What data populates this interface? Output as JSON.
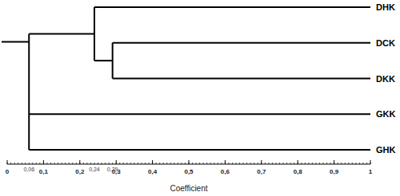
{
  "chart_data": {
    "type": "dendrogram",
    "x_label": "Coefficient",
    "xlim": [
      0,
      1
    ],
    "xticks": [
      0,
      {
        "value": 0.1,
        "label": "0,1"
      },
      {
        "value": 0.2,
        "label": "0,2"
      },
      {
        "value": 0.3,
        "label": "0,3"
      },
      {
        "value": 0.4,
        "label": "0,4"
      },
      {
        "value": 0.5,
        "label": "0,5"
      },
      {
        "value": 0.6,
        "label": "0,6"
      },
      {
        "value": 0.7,
        "label": "0,7"
      },
      {
        "value": 0.8,
        "label": "0,8"
      },
      {
        "value": 0.9,
        "label": "0,9"
      },
      1
    ],
    "node_labels": [
      {
        "value": 0.06,
        "label": "0,06"
      },
      {
        "value": 0.24,
        "label": "0,24"
      },
      {
        "value": 0.29,
        "label": "0,29"
      }
    ],
    "color": "#000000",
    "tree": {
      "height": 0.06,
      "children": [
        {
          "height": 0.24,
          "children": [
            {
              "leaf": "DHK"
            },
            {
              "height": 0.29,
              "children": [
                {
                  "leaf": "DCK"
                },
                {
                  "leaf": "DKK"
                }
              ]
            }
          ]
        },
        {
          "leaf": "GKK"
        },
        {
          "leaf": "GHK"
        }
      ]
    }
  }
}
